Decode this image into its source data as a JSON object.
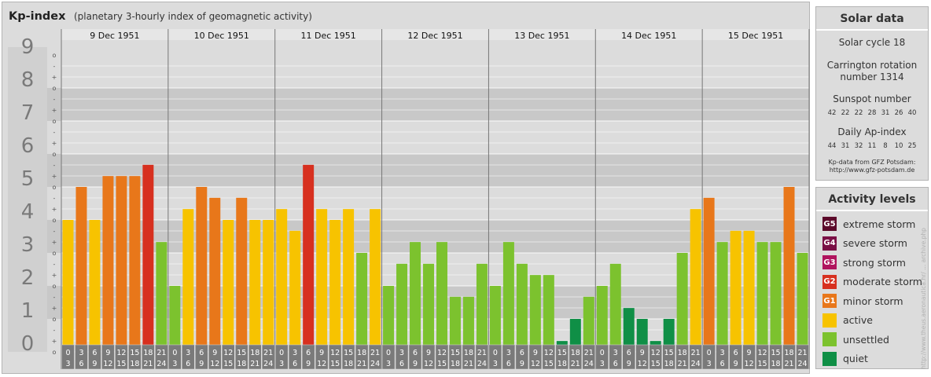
{
  "header": {
    "title": "Kp-index",
    "subtitle": "(planetary 3-hourly index of geomagnetic activity)"
  },
  "solar": {
    "title": "Solar data",
    "cycle": "Solar cycle 18",
    "carrington_line1": "Carrington rotation",
    "carrington_line2": "number 1314",
    "sunspot_title": "Sunspot number",
    "sunspot_values": [
      "42",
      "22",
      "22",
      "28",
      "31",
      "26",
      "40"
    ],
    "ap_title": "Daily Ap-index",
    "ap_values": [
      "44",
      "31",
      "32",
      "11",
      "8",
      "10",
      "25"
    ],
    "source_line1": "Kp-data from GFZ Potsdam:",
    "source_line2": "http://www.gfz-potsdam.de"
  },
  "legend": {
    "title": "Activity levels",
    "items": [
      {
        "badge": "G5",
        "label": "extreme storm",
        "color": "#5c0a2a"
      },
      {
        "badge": "G4",
        "label": "severe storm",
        "color": "#7a0f45"
      },
      {
        "badge": "G3",
        "label": "strong storm",
        "color": "#b0145e"
      },
      {
        "badge": "G2",
        "label": "moderate storm",
        "color": "#d7301f"
      },
      {
        "badge": "G1",
        "label": "minor storm",
        "color": "#e8771a"
      },
      {
        "badge": "",
        "label": "active",
        "color": "#f7c300"
      },
      {
        "badge": "",
        "label": "unsettled",
        "color": "#7cc22e"
      },
      {
        "badge": "",
        "label": "quiet",
        "color": "#0f8f46"
      }
    ]
  },
  "credit": "http://www.theus.aeronautica.hr/ ... archive.php",
  "chart_data": {
    "type": "bar",
    "title": "Kp-index",
    "ylim": [
      0,
      9
    ],
    "y_ticks": [
      "0",
      "1",
      "2",
      "3",
      "4",
      "5",
      "6",
      "7",
      "8",
      "9"
    ],
    "sub_ticks": [
      "-",
      "o",
      "+"
    ],
    "days": [
      "9 Dec 1951",
      "10 Dec 1951",
      "11 Dec 1951",
      "12 Dec 1951",
      "13 Dec 1951",
      "14 Dec 1951",
      "15 Dec 1951"
    ],
    "hour_labels_top": [
      "0",
      "3",
      "6",
      "9",
      "12",
      "15",
      "18",
      "21"
    ],
    "hour_labels_bottom": [
      "3",
      "6",
      "9",
      "12",
      "15",
      "18",
      "21",
      "24"
    ],
    "values": [
      [
        4.0,
        5.0,
        4.0,
        5.33,
        5.33,
        5.33,
        5.67,
        3.33
      ],
      [
        2.0,
        4.33,
        5.0,
        4.67,
        4.0,
        4.67,
        4.0,
        4.0
      ],
      [
        4.33,
        3.67,
        5.67,
        4.33,
        4.0,
        4.33,
        3.0,
        4.33
      ],
      [
        2.0,
        2.67,
        3.33,
        2.67,
        3.33,
        1.67,
        1.67,
        2.67
      ],
      [
        2.0,
        3.33,
        2.67,
        2.33,
        2.33,
        0.33,
        1.0,
        1.67
      ],
      [
        2.0,
        2.67,
        1.33,
        1.0,
        0.33,
        1.0,
        3.0,
        4.33
      ],
      [
        4.67,
        3.33,
        3.67,
        3.67,
        3.33,
        3.33,
        5.0,
        3.0
      ]
    ],
    "colors": {
      "quiet": "#0f8f46",
      "unsettled": "#7cc22e",
      "active": "#f7c300",
      "minor": "#e8771a",
      "moderate": "#d7301f"
    }
  }
}
